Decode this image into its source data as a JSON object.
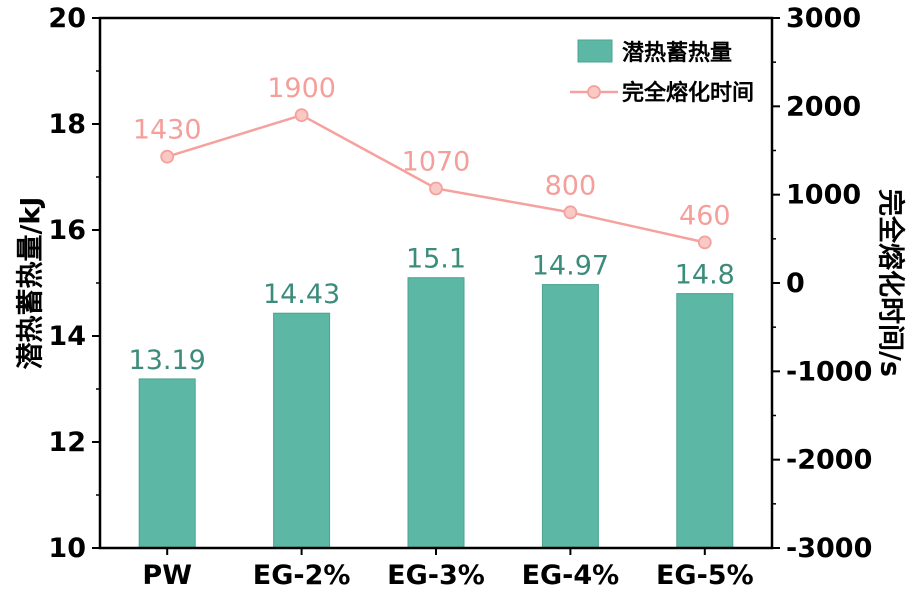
{
  "chart_data": {
    "type": "bar",
    "title": "",
    "categories": [
      "PW",
      "EG-2%",
      "EG-3%",
      "EG-4%",
      "EG-5%"
    ],
    "series": [
      {
        "name": "潜热蓄热量",
        "type": "bar",
        "axis": "left",
        "color": "#5cb8a5",
        "label_color": "#3c8c7c",
        "values": [
          13.19,
          14.43,
          15.1,
          14.97,
          14.8
        ]
      },
      {
        "name": "完全熔化时间",
        "type": "line",
        "axis": "right",
        "color": "#f5a29e",
        "marker_fill": "#fac9c6",
        "label_color": "#f59f9b",
        "values": [
          1430,
          1900,
          1070,
          800,
          460
        ]
      }
    ],
    "left_axis": {
      "label": "潜热蓄热量/kJ",
      "min": 10,
      "max": 20,
      "ticks": [
        10,
        12,
        14,
        16,
        18,
        20
      ]
    },
    "right_axis": {
      "label": "完全熔化时间/s",
      "min": -3000,
      "max": 3000,
      "ticks": [
        -3000,
        -2000,
        -1000,
        0,
        1000,
        2000,
        3000
      ]
    },
    "legend": {
      "position": "top-right",
      "items": [
        "潜热蓄热量",
        "完全熔化时间"
      ]
    },
    "grid": false,
    "axis_color": "#000000",
    "background": "#ffffff"
  }
}
